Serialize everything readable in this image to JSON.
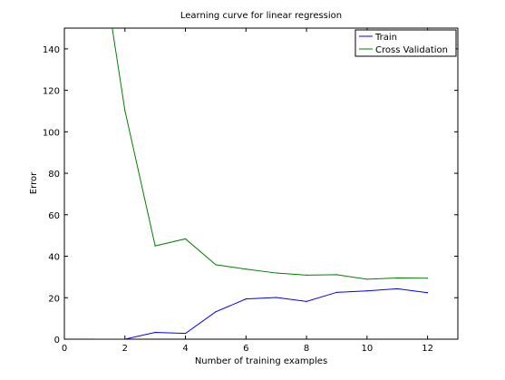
{
  "chart_data": {
    "type": "line",
    "title": "Learning curve for linear regression",
    "xlabel": "Number of training examples",
    "ylabel": "Error",
    "xlim": [
      0,
      13
    ],
    "ylim": [
      0,
      150
    ],
    "xticks": [
      0,
      2,
      4,
      6,
      8,
      10,
      12
    ],
    "yticks": [
      0,
      20,
      40,
      60,
      80,
      100,
      120,
      140
    ],
    "grid": false,
    "legend_position": "top-right",
    "series": [
      {
        "name": "Train",
        "color": "#0000ff",
        "x": [
          1,
          2,
          3,
          4,
          5,
          6,
          7,
          8,
          9,
          10,
          11,
          12
        ],
        "values": [
          0.0,
          0.0,
          3.3,
          2.8,
          13.2,
          19.4,
          20.1,
          18.2,
          22.6,
          23.3,
          24.3,
          22.4
        ]
      },
      {
        "name": "Cross Validation",
        "color": "#008000",
        "x": [
          1,
          2,
          3,
          4,
          5,
          6,
          7,
          8,
          9,
          10,
          11,
          12
        ],
        "values": [
          205.1,
          110.3,
          45.0,
          48.4,
          35.9,
          33.8,
          31.9,
          30.9,
          31.1,
          28.9,
          29.5,
          29.4
        ]
      }
    ]
  }
}
